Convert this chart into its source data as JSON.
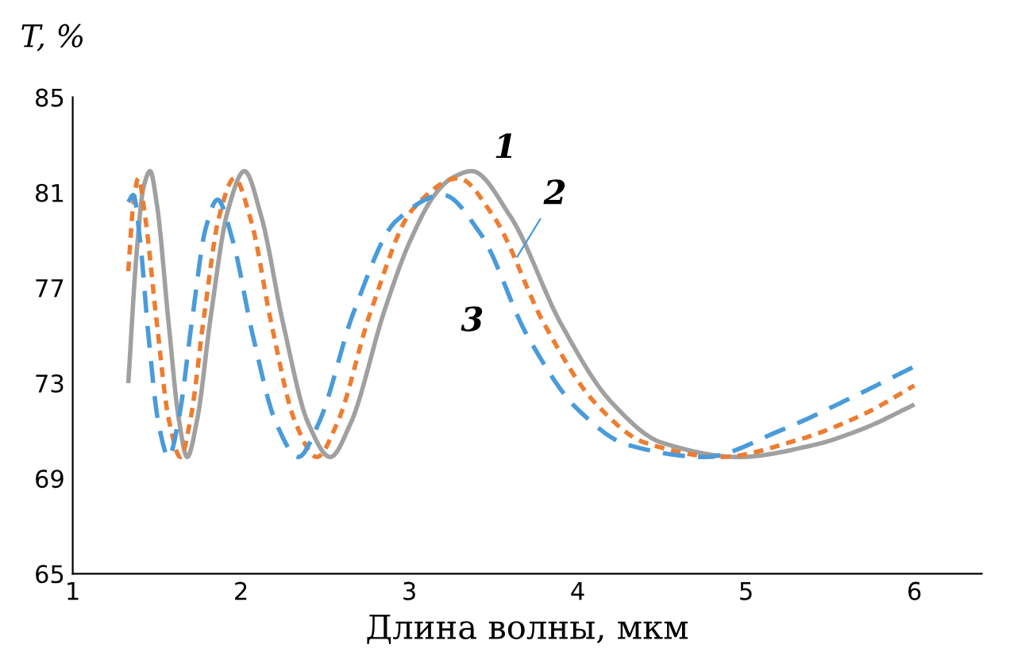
{
  "chart_data": {
    "type": "line",
    "xlabel": "Длина волны, мкм",
    "ylabel": "T, %",
    "xlim": [
      1,
      6.4
    ],
    "xticks": [
      1,
      2,
      3,
      4,
      5,
      6
    ],
    "ylim": [
      65,
      85
    ],
    "yticks": [
      65,
      69,
      73,
      77,
      81,
      85
    ],
    "grid": false,
    "marker": "none",
    "series": [
      {
        "color": "#a0a0a0",
        "line_style": "solid",
        "x": [
          1.33,
          1.38,
          1.42,
          1.46,
          1.5,
          1.57,
          1.63,
          1.68,
          1.74,
          1.82,
          1.92,
          2.02,
          2.12,
          2.25,
          2.4,
          2.53,
          2.65,
          2.85,
          3.0,
          3.15,
          3.25,
          3.37,
          3.6,
          3.9,
          4.2,
          4.5,
          4.96,
          5.4,
          5.7,
          6.0
        ],
        "values": [
          73,
          78.5,
          81.2,
          81.9,
          80.5,
          75.5,
          71.5,
          69.9,
          71.5,
          75.8,
          80.2,
          81.9,
          80,
          75.5,
          71.3,
          69.9,
          71.3,
          76,
          78.9,
          80.9,
          81.6,
          81.9,
          80,
          75.5,
          72.2,
          70.5,
          69.9,
          70.4,
          71.1,
          72.1
        ]
      },
      {
        "color": "#ed7d31",
        "line_style": "dotted",
        "x": [
          1.33,
          1.36,
          1.39,
          1.43,
          1.5,
          1.57,
          1.64,
          1.7,
          1.78,
          1.87,
          1.96,
          2.06,
          2.18,
          2.32,
          2.45,
          2.57,
          2.77,
          3.02,
          3.29,
          3.5,
          3.8,
          4.1,
          4.4,
          4.85,
          5.3,
          5.7,
          6.0
        ],
        "values": [
          77.7,
          80.5,
          81.6,
          80,
          75.5,
          71.5,
          69.9,
          71.5,
          75.8,
          80,
          81.6,
          79.8,
          75.5,
          71.4,
          69.9,
          71.3,
          76,
          80.3,
          81.6,
          80,
          75.5,
          72.2,
          70.5,
          69.9,
          70.6,
          71.7,
          72.9
        ]
      },
      {
        "color": "#4a9bd9",
        "line_style": "dashed",
        "x": [
          1.33,
          1.36,
          1.4,
          1.45,
          1.51,
          1.57,
          1.63,
          1.71,
          1.79,
          1.86,
          1.95,
          2.07,
          2.21,
          2.34,
          2.46,
          2.67,
          2.92,
          3.2,
          3.42,
          3.7,
          4.0,
          4.3,
          4.75,
          5.2,
          5.6,
          6.0
        ],
        "values": [
          80.6,
          80.9,
          79,
          75,
          71.3,
          69.9,
          71.5,
          75.7,
          79.5,
          80.7,
          79,
          75,
          71.3,
          69.9,
          71.3,
          76,
          79.8,
          80.9,
          79.3,
          75,
          71.9,
          70.4,
          69.9,
          71,
          72.3,
          73.7
        ]
      }
    ],
    "annotations": [
      {
        "text": "1",
        "x": 3.37,
        "y": 81.9
      },
      {
        "text": "2",
        "x": 3.64,
        "y": 78.3
      },
      {
        "text": "3",
        "x": 3.62,
        "y": 76.3
      }
    ]
  }
}
